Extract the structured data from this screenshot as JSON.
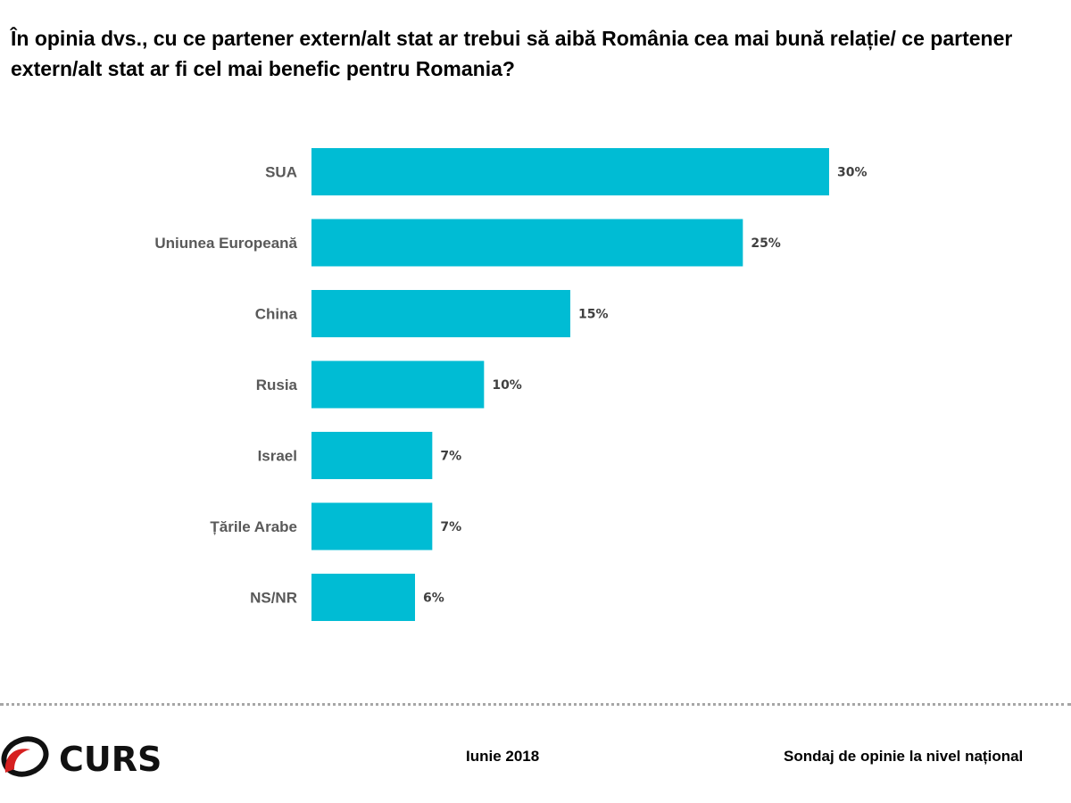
{
  "title": "În opinia dvs., cu ce partener extern/alt stat ar trebui să aibă România cea mai bună relație/ ce partener extern/alt stat ar fi cel mai benefic pentru Romania?",
  "colors": {
    "bar": "#00BCD4"
  },
  "chart_data": {
    "type": "bar",
    "orientation": "horizontal",
    "title": "În opinia dvs., cu ce partener extern/alt stat ar trebui să aibă România cea mai bună relație/ ce partener extern/alt stat ar fi cel mai benefic pentru Romania?",
    "categories": [
      "SUA",
      "Uniunea Europeană",
      "China",
      "Rusia",
      "Israel",
      "Țările Arabe",
      "NS/NR"
    ],
    "values": [
      30,
      25,
      15,
      10,
      7,
      7,
      6
    ],
    "labels": [
      "30%",
      "25%",
      "15%",
      "10%",
      "7%",
      "7%",
      "6%"
    ],
    "xlabel": "",
    "ylabel": "",
    "xlim": [
      0,
      30
    ],
    "grid": false,
    "legend": "none"
  },
  "footer": {
    "logo_text": "CURS",
    "date": "Iunie 2018",
    "survey": "Sondaj de opinie la nivel național"
  }
}
